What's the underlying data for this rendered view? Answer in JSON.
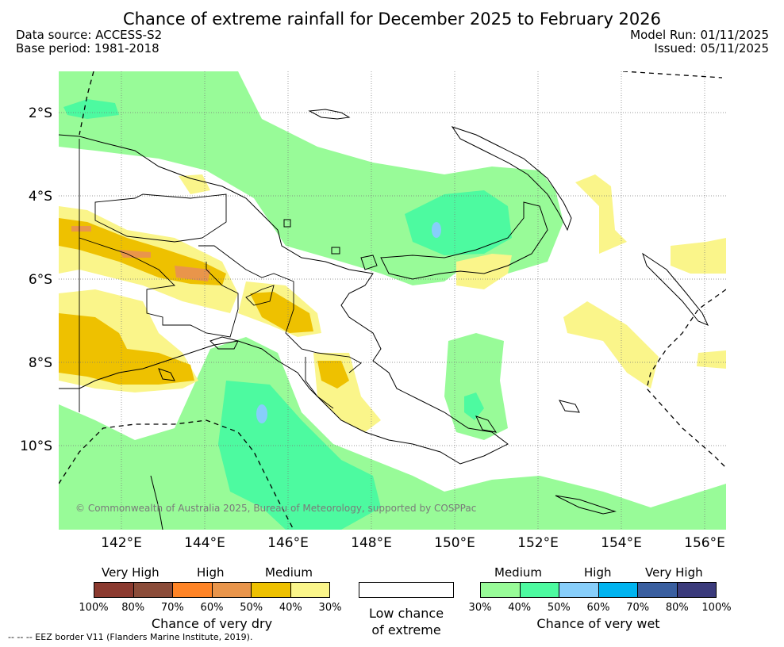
{
  "header": {
    "title": "Chance of extreme rainfall for December 2025 to February 2026",
    "data_source": "Data source: ACCESS-S2",
    "base_period": "Base period: 1981-2018",
    "model_run": "Model Run: 01/11/2025",
    "issued": "Issued: 05/11/2025"
  },
  "map": {
    "lat_labels": [
      "2°S",
      "4°S",
      "6°S",
      "8°S",
      "10°S"
    ],
    "lon_labels": [
      "142°E",
      "144°E",
      "146°E",
      "148°E",
      "150°E",
      "152°E",
      "154°E",
      "156°E"
    ],
    "copyright": "© Commonwealth of Australia 2025, Bureau of Meteorology, supported by COSPPac"
  },
  "legend": {
    "dry": {
      "categories": [
        "Very High",
        "High",
        "Medium"
      ],
      "percents": [
        "100%",
        "80%",
        "70%",
        "60%",
        "50%",
        "40%",
        "30%"
      ],
      "colors": [
        "#8b3a2f",
        "#8b4c39",
        "#ff8426",
        "#e9954b",
        "#eec100",
        "#faf58a"
      ],
      "title": "Chance of very dry"
    },
    "low": {
      "line1": "Low chance",
      "line2": "of extreme"
    },
    "wet": {
      "categories": [
        "Medium",
        "High",
        "Very High"
      ],
      "percents": [
        "30%",
        "40%",
        "50%",
        "60%",
        "70%",
        "80%",
        "100%"
      ],
      "colors": [
        "#98fb98",
        "#4dfaa0",
        "#87cefa",
        "#00b4f0",
        "#3a5fa0",
        "#3b3b7c"
      ],
      "title": "Chance of very wet"
    }
  },
  "footnote": "--  --  -- EEZ border V11 (Flanders Marine Institute, 2019)."
}
